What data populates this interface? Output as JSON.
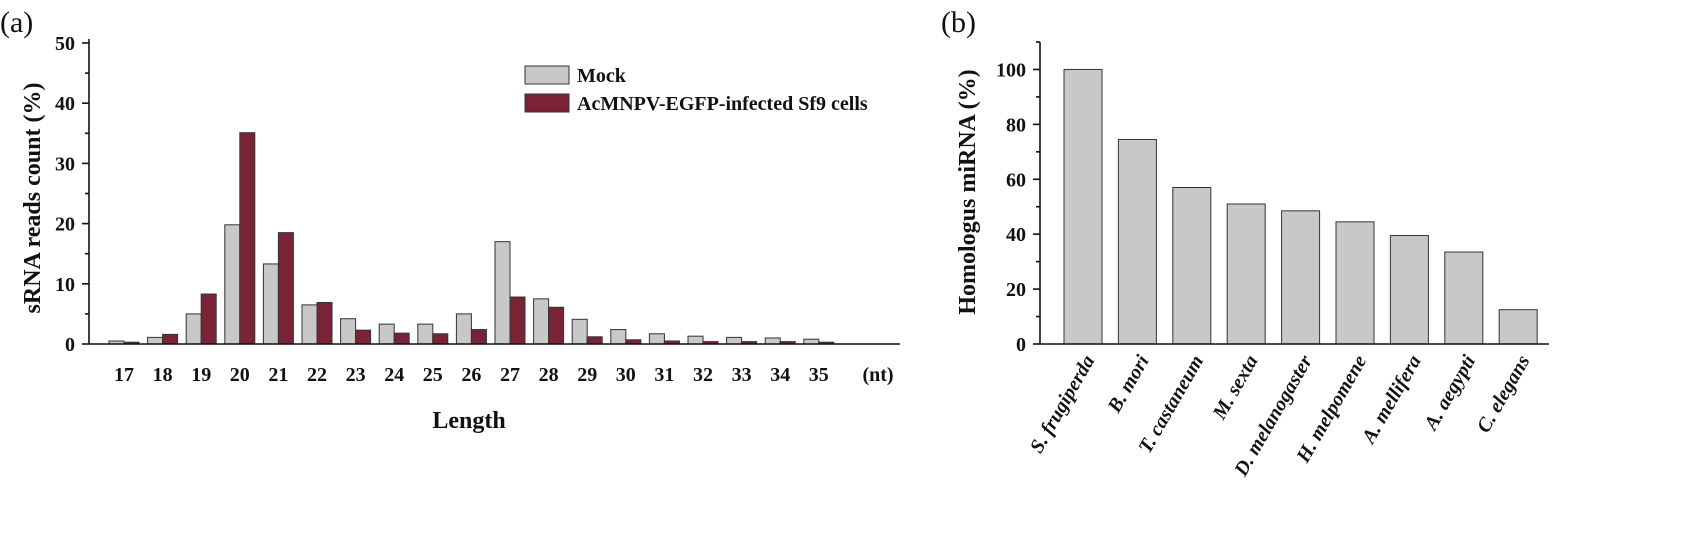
{
  "chart_data": [
    {
      "panel": "(a)",
      "type": "bar",
      "title": "",
      "xlabel": "Length",
      "ylabel": "sRNA reads count (%)",
      "x_unit_label": "(nt)",
      "ylim": [
        0,
        50
      ],
      "yticks": [
        "0",
        "10",
        "20",
        "30",
        "40",
        "50"
      ],
      "categories": [
        "17",
        "18",
        "19",
        "20",
        "21",
        "22",
        "23",
        "24",
        "25",
        "26",
        "27",
        "28",
        "29",
        "30",
        "31",
        "32",
        "33",
        "34",
        "35"
      ],
      "series": [
        {
          "name": "Mock",
          "color": "#c8c8c8",
          "values": [
            0.5,
            1.1,
            5.0,
            19.8,
            13.3,
            6.5,
            4.2,
            3.3,
            3.3,
            5.0,
            17.0,
            7.5,
            4.1,
            2.4,
            1.7,
            1.3,
            1.1,
            1.0,
            0.8
          ]
        },
        {
          "name": "AcMNPV-EGFP-infected Sf9 cells",
          "color": "#7a2337",
          "values": [
            0.3,
            1.6,
            8.3,
            35.1,
            18.5,
            6.9,
            2.3,
            1.8,
            1.7,
            2.4,
            7.8,
            6.1,
            1.2,
            0.7,
            0.5,
            0.4,
            0.4,
            0.4,
            0.3
          ]
        }
      ],
      "legend_position": "top-right"
    },
    {
      "panel": "(b)",
      "type": "bar",
      "title": "",
      "xlabel": "",
      "ylabel": "Homologus miRNA (%)",
      "ylim": [
        0,
        110
      ],
      "yticks": [
        "0",
        "20",
        "40",
        "60",
        "80",
        "100"
      ],
      "categories": [
        "S. frugiperda",
        "B. mori",
        "T. castaneum",
        "M. sexta",
        "D. melanogaster",
        "H. melpomene",
        "A. mellifera",
        "A. aegypti",
        "C. elegans"
      ],
      "series": [
        {
          "name": "Homologus miRNA",
          "color": "#c8c8c8",
          "values": [
            100,
            74.5,
            57,
            51,
            48.5,
            44.5,
            39.5,
            33.5,
            12.5
          ]
        }
      ]
    }
  ]
}
